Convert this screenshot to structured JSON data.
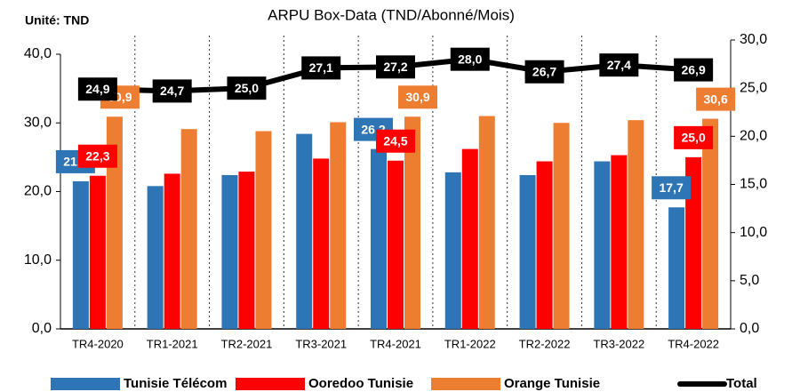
{
  "chart_data": {
    "type": "bar",
    "title": "ARPU Box-Data  (TND/Abonné/Mois)",
    "annotation": "Unité: TND",
    "categories": [
      "TR4-2020",
      "TR1-2021",
      "TR2-2021",
      "TR3-2021",
      "TR4-2021",
      "TR1-2022",
      "TR2-2022",
      "TR3-2022",
      "TR4-2022"
    ],
    "series": [
      {
        "name": "Tunisie Télécom",
        "color": "#2e75b6",
        "type": "bar",
        "values": [
          21.5,
          20.8,
          22.4,
          28.4,
          26.2,
          22.8,
          22.4,
          24.4,
          17.7
        ],
        "value_labels": [
          "21,5",
          null,
          null,
          null,
          "26,2",
          null,
          null,
          null,
          "17,7"
        ]
      },
      {
        "name": "Ooredoo Tunisie",
        "color": "#ff0000",
        "type": "bar",
        "values": [
          22.3,
          22.6,
          22.9,
          24.8,
          24.5,
          26.2,
          24.4,
          25.3,
          25.0
        ],
        "value_labels": [
          "22,3",
          null,
          null,
          null,
          "24,5",
          null,
          null,
          null,
          "25,0"
        ]
      },
      {
        "name": "Orange Tunisie",
        "color": "#ed7d31",
        "type": "bar",
        "values": [
          30.9,
          29.1,
          28.8,
          30.1,
          30.9,
          31.0,
          30.0,
          30.4,
          30.6
        ],
        "value_labels": [
          "30,9",
          null,
          null,
          null,
          "30,9",
          null,
          null,
          null,
          "30,6"
        ]
      },
      {
        "name": "Total",
        "color": "#000000",
        "type": "line",
        "axis": "y2",
        "values": [
          24.9,
          24.7,
          25.0,
          27.1,
          27.2,
          28.0,
          26.7,
          27.4,
          26.9
        ],
        "value_labels": [
          "24,9",
          "24,7",
          "25,0",
          "27,1",
          "27,2",
          "28,0",
          "26,7",
          "27,4",
          "26,9"
        ]
      }
    ],
    "ylim": [
      0,
      40
    ],
    "yticks": [
      {
        "value": 0,
        "label": "0,0"
      },
      {
        "value": 10,
        "label": "10,0"
      },
      {
        "value": 20,
        "label": "20,0"
      },
      {
        "value": 30,
        "label": "30,0"
      },
      {
        "value": 40,
        "label": "40,0"
      }
    ],
    "y2lim": [
      0,
      30
    ],
    "y2ticks": [
      {
        "value": 0,
        "label": "0,0"
      },
      {
        "value": 5,
        "label": "5,0"
      },
      {
        "value": 10,
        "label": "10,0"
      },
      {
        "value": 15,
        "label": "15,0"
      },
      {
        "value": 20,
        "label": "20,0"
      },
      {
        "value": 25,
        "label": "25,0"
      },
      {
        "value": 30,
        "label": "30,0"
      }
    ],
    "legend": "bottom"
  }
}
